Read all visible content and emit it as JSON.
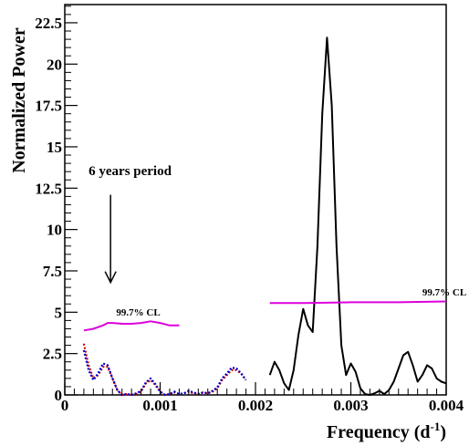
{
  "chart_data": {
    "type": "line",
    "xlabel": "Frequency (d",
    "xlabel_sup": "-1",
    "xlabel_close": ")",
    "ylabel": "Normalized Power",
    "xlim": [
      0,
      0.004
    ],
    "ylim": [
      0,
      23.6
    ],
    "x_ticks": [
      {
        "value": 0,
        "label": "0"
      },
      {
        "value": 0.001,
        "label": "0.001"
      },
      {
        "value": 0.002,
        "label": "0.002"
      },
      {
        "value": 0.003,
        "label": "0.003"
      },
      {
        "value": 0.004,
        "label": "0.004"
      }
    ],
    "y_ticks": [
      {
        "value": 0,
        "label": "0"
      },
      {
        "value": 2.5,
        "label": "2.5"
      },
      {
        "value": 5,
        "label": "5"
      },
      {
        "value": 7.5,
        "label": "7.5"
      },
      {
        "value": 10,
        "label": "10"
      },
      {
        "value": 12.5,
        "label": "12.5"
      },
      {
        "value": 15,
        "label": "15"
      },
      {
        "value": 17.5,
        "label": "17.5"
      },
      {
        "value": 20,
        "label": "20"
      },
      {
        "value": 22.5,
        "label": "22.5"
      }
    ],
    "series": [
      {
        "color": "#000000",
        "style": "solid",
        "x": [
          0.00215,
          0.0022,
          0.00225,
          0.0023,
          0.00235,
          0.0024,
          0.00245,
          0.0025,
          0.00255,
          0.0026,
          0.00265,
          0.0027,
          0.00275,
          0.0028,
          0.00285,
          0.0029,
          0.00295,
          0.003,
          0.00305,
          0.0031,
          0.00315,
          0.0032,
          0.00325,
          0.0033,
          0.00335,
          0.0034,
          0.00345,
          0.0035,
          0.00355,
          0.0036,
          0.00365,
          0.0037,
          0.00375,
          0.0038,
          0.00385,
          0.0039,
          0.00395,
          0.004
        ],
        "y": [
          1.2,
          2.0,
          1.5,
          0.7,
          0.3,
          1.5,
          3.6,
          5.2,
          4.2,
          3.8,
          9.0,
          17.0,
          21.6,
          17.5,
          9.0,
          3.0,
          1.2,
          1.9,
          1.4,
          0.4,
          0.05,
          0.0,
          0.1,
          0.25,
          0.05,
          0.3,
          0.8,
          1.6,
          2.4,
          2.6,
          1.8,
          0.8,
          1.2,
          1.8,
          1.6,
          1.0,
          0.8,
          0.7
        ]
      },
      {
        "color": "#cc0000",
        "style": "dotted",
        "x": [
          0.0002,
          0.00025,
          0.0003,
          0.00035,
          0.0004,
          0.00045,
          0.0005,
          0.00055,
          0.0006,
          0.00065,
          0.0007,
          0.00075,
          0.0008,
          0.00085,
          0.0009,
          0.00095,
          0.001,
          0.00105,
          0.0011,
          0.00115,
          0.0012,
          0.00125,
          0.0013,
          0.00135,
          0.0014,
          0.00145,
          0.0015,
          0.00155,
          0.0016,
          0.00165,
          0.0017,
          0.00175,
          0.0018,
          0.00185,
          0.0019
        ],
        "y": [
          3.1,
          1.8,
          1.0,
          1.2,
          1.7,
          1.7,
          1.0,
          0.3,
          0.0,
          0.05,
          0.0,
          0.05,
          0.2,
          0.7,
          0.9,
          0.6,
          0.2,
          0.0,
          0.05,
          0.15,
          0.05,
          0.1,
          0.2,
          0.1,
          0.05,
          0.15,
          0.1,
          0.2,
          0.4,
          0.9,
          1.2,
          1.5,
          1.5,
          1.3,
          0.9
        ]
      },
      {
        "color": "#0000cc",
        "style": "dotted",
        "x": [
          0.0002,
          0.00025,
          0.0003,
          0.00035,
          0.0004,
          0.00045,
          0.0005,
          0.00055,
          0.0006,
          0.00065,
          0.0007,
          0.00075,
          0.0008,
          0.00085,
          0.0009,
          0.00095,
          0.001,
          0.00105,
          0.0011,
          0.00115,
          0.0012,
          0.00125,
          0.0013,
          0.00135,
          0.0014,
          0.00145,
          0.0015,
          0.00155,
          0.0016,
          0.00165,
          0.0017,
          0.00175,
          0.0018,
          0.00185,
          0.0019
        ],
        "y": [
          2.7,
          1.5,
          0.9,
          1.3,
          1.9,
          1.8,
          1.0,
          0.3,
          0.0,
          0.05,
          0.0,
          0.1,
          0.25,
          0.75,
          1.0,
          0.65,
          0.2,
          0.0,
          0.05,
          0.2,
          0.05,
          0.1,
          0.25,
          0.15,
          0.05,
          0.15,
          0.1,
          0.25,
          0.45,
          1.0,
          1.3,
          1.65,
          1.6,
          1.3,
          0.9
        ]
      },
      {
        "color": "#dd00dd",
        "style": "solid",
        "x": [
          0.0002,
          0.0003,
          0.0004,
          0.00045,
          0.0005,
          0.0006,
          0.0007,
          0.0008,
          0.0009,
          0.001,
          0.0011,
          0.0012
        ],
        "y": [
          3.9,
          4.0,
          4.2,
          4.35,
          4.35,
          4.3,
          4.3,
          4.35,
          4.45,
          4.35,
          4.2,
          4.2
        ]
      },
      {
        "color": "#dd00dd",
        "style": "solid",
        "x": [
          0.00215,
          0.0025,
          0.003,
          0.0035,
          0.004
        ],
        "y": [
          5.55,
          5.55,
          5.6,
          5.6,
          5.65
        ]
      }
    ],
    "annotations": [
      {
        "id": "six-years",
        "text": "6 years period",
        "x": 0.00025,
        "y": 13.3
      },
      {
        "id": "cl-left",
        "text": "99.7% CL",
        "x": 0.00054,
        "y": 4.8
      },
      {
        "id": "cl-right",
        "text": "99.7% CL",
        "x": 0.00375,
        "y": 6.0
      }
    ],
    "arrow": {
      "x": 0.00048,
      "y_from": 12.1,
      "y_to": 6.8
    }
  }
}
